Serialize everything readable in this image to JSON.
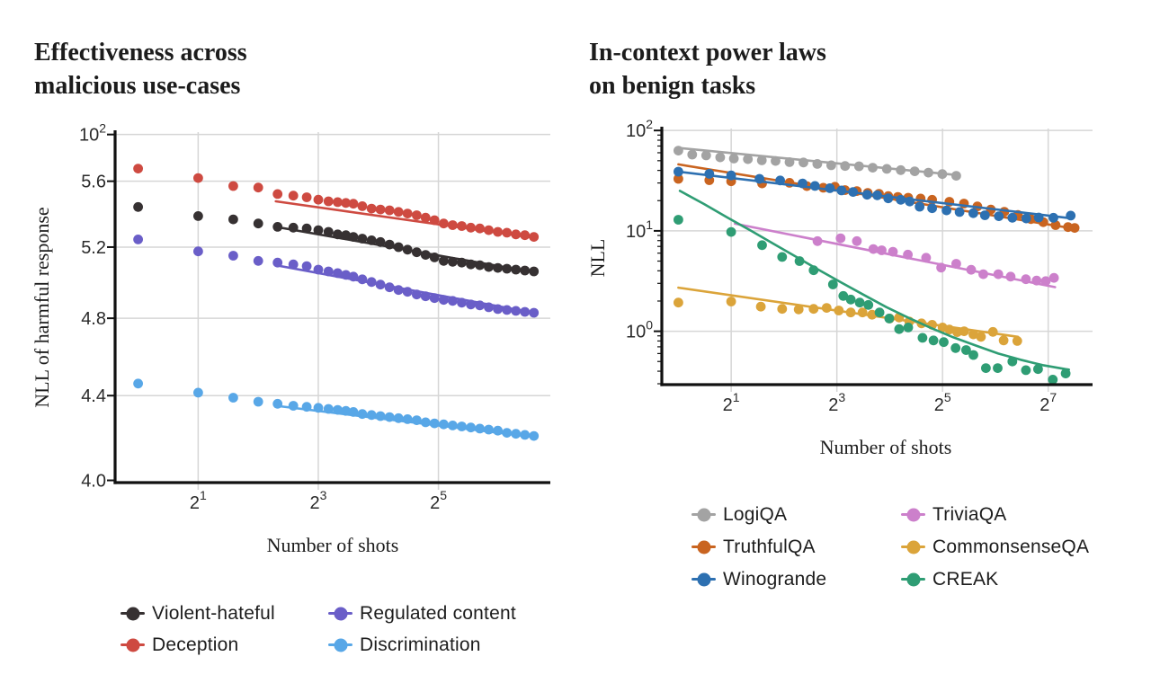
{
  "chart_data": [
    {
      "type": "scatter",
      "title_lines": [
        "Effectiveness across",
        "malicious use-cases"
      ],
      "xlabel": "Number of shots",
      "ylabel": "NLL of harmful response",
      "x_scale": "log2",
      "y_scale": "log10",
      "x_domain": [
        0.767,
        116.4
      ],
      "y_domain": [
        3.99,
        5.918
      ],
      "grid": true,
      "x_ticks": [
        {
          "base": "2",
          "sup": "1",
          "value": 2
        },
        {
          "base": "2",
          "sup": "3",
          "value": 8
        },
        {
          "base": "2",
          "sup": "5",
          "value": 32
        }
      ],
      "y_ticks": [
        {
          "text": "10",
          "sup": "2",
          "value": 5.902,
          "grid": true
        },
        {
          "text": "5.6",
          "value": 5.6,
          "grid": true
        },
        {
          "text": "5.2",
          "value": 5.2,
          "grid": true
        },
        {
          "text": "4.8",
          "value": 4.8,
          "grid": true
        },
        {
          "text": "4.4",
          "value": 4.4,
          "grid": true
        },
        {
          "text": "4.0",
          "value": 4.0,
          "grid": false
        }
      ],
      "y_minor_ticks": false,
      "shots_x": [
        1,
        2,
        3,
        4,
        5,
        6,
        7,
        8,
        9,
        10,
        11,
        12,
        13.3,
        14.8,
        16.4,
        18.2,
        20.2,
        22.4,
        24.9,
        27.6,
        30.6,
        34,
        37.7,
        41.9,
        46.5,
        51.6,
        57.2,
        63.5,
        70.5,
        78.2,
        86.8,
        96.3
      ],
      "series": [
        {
          "key": "violent-hateful",
          "name": "Violent-hateful",
          "color": "#363132",
          "y": [
            5.44,
            5.385,
            5.365,
            5.34,
            5.32,
            5.315,
            5.31,
            5.3,
            5.29,
            5.275,
            5.27,
            5.26,
            5.25,
            5.24,
            5.23,
            5.215,
            5.2,
            5.185,
            5.17,
            5.155,
            5.14,
            5.12,
            5.115,
            5.11,
            5.1,
            5.095,
            5.085,
            5.08,
            5.075,
            5.07,
            5.065,
            5.06
          ],
          "fit": {
            "x": [
              4.9,
              96
            ],
            "y": [
              5.32,
              5.055
            ]
          }
        },
        {
          "key": "deception",
          "name": "Deception",
          "color": "#ce4a41",
          "y": [
            5.68,
            5.62,
            5.57,
            5.56,
            5.52,
            5.51,
            5.5,
            5.485,
            5.475,
            5.47,
            5.465,
            5.46,
            5.445,
            5.43,
            5.425,
            5.42,
            5.41,
            5.4,
            5.39,
            5.375,
            5.36,
            5.34,
            5.33,
            5.325,
            5.315,
            5.31,
            5.3,
            5.29,
            5.285,
            5.275,
            5.27,
            5.26
          ],
          "fit": {
            "x": [
              4.9,
              96
            ],
            "y": [
              5.475,
              5.255
            ]
          }
        },
        {
          "key": "discrimination",
          "name": "Discrimination",
          "color": "#58a7e7",
          "y": [
            4.46,
            4.415,
            4.39,
            4.37,
            4.36,
            4.35,
            4.345,
            4.34,
            4.335,
            4.33,
            4.325,
            4.32,
            4.31,
            4.305,
            4.3,
            4.295,
            4.29,
            4.285,
            4.28,
            4.27,
            4.265,
            4.26,
            4.255,
            4.25,
            4.245,
            4.24,
            4.235,
            4.23,
            4.22,
            4.215,
            4.21,
            4.205
          ],
          "fit": {
            "x": [
              4.9,
              96
            ],
            "y": [
              4.35,
              4.2
            ]
          }
        },
        {
          "key": "regulated-content",
          "name": "Regulated content",
          "color": "#6a5ec8",
          "y": [
            5.245,
            5.175,
            5.15,
            5.12,
            5.11,
            5.1,
            5.09,
            5.07,
            5.06,
            5.05,
            5.04,
            5.03,
            5.015,
            5.0,
            4.985,
            4.97,
            4.955,
            4.945,
            4.93,
            4.92,
            4.91,
            4.9,
            4.895,
            4.885,
            4.875,
            4.87,
            4.86,
            4.85,
            4.845,
            4.84,
            4.835,
            4.83
          ],
          "fit": {
            "x": [
              4.9,
              96
            ],
            "y": [
              5.095,
              4.83
            ]
          }
        }
      ],
      "legend_columns": [
        [
          0,
          1
        ],
        [
          3,
          2
        ]
      ],
      "line_over_dots": true
    },
    {
      "type": "scatter",
      "title_lines": [
        "In-context power laws",
        "on benign tasks"
      ],
      "xlabel": "Number of shots",
      "ylabel": "NLL",
      "x_scale": "log2",
      "y_scale": "log10",
      "x_domain": [
        0.805,
        229
      ],
      "y_domain": [
        0.294,
        104.6
      ],
      "grid": true,
      "x_ticks": [
        {
          "base": "2",
          "sup": "1",
          "value": 2
        },
        {
          "base": "2",
          "sup": "3",
          "value": 8
        },
        {
          "base": "2",
          "sup": "5",
          "value": 32
        },
        {
          "base": "2",
          "sup": "7",
          "value": 128
        }
      ],
      "y_ticks": [
        {
          "text": "10",
          "sup": "2",
          "value": 100,
          "grid": true
        },
        {
          "text": "10",
          "sup": "1",
          "value": 10,
          "grid": true
        },
        {
          "text": "10",
          "sup": "0",
          "value": 1,
          "grid": true
        }
      ],
      "y_minor_ticks": true,
      "series": [
        {
          "key": "logiqa",
          "name": "LogiQA",
          "color": "#a3a3a3",
          "points": {
            "x": [
              1,
              1.2,
              1.44,
              1.73,
              2.07,
              2.49,
              2.99,
              3.58,
              4.3,
              5.16,
              6.19,
              7.43,
              8.91,
              10.7,
              12.8,
              15.4,
              18.5,
              22.2,
              26.6,
              31.9,
              38.3
            ],
            "y": [
              63,
              57.5,
              56.5,
              54,
              52.5,
              51.8,
              50.4,
              49.7,
              48.4,
              48,
              46.4,
              45,
              44.3,
              44,
              42.6,
              41.5,
              40.3,
              39.2,
              38,
              36.8,
              35.4
            ]
          },
          "fit": {
            "x": [
              1,
              38.3
            ],
            "y": [
              67,
              36
            ]
          }
        },
        {
          "key": "truthfulqa",
          "name": "TruthfulQA",
          "color": "#c96420",
          "points": {
            "x": [
              1,
              1.5,
              2,
              3,
              4.3,
              5.4,
              6.7,
              7.8,
              8.9,
              10.4,
              12,
              13.9,
              15.7,
              17.8,
              20.4,
              24,
              27.9,
              35,
              42.4,
              50.5,
              60.3,
              72,
              86,
              102,
              120,
              141,
              166,
              181
            ],
            "y": [
              33,
              32,
              31.2,
              29.7,
              30.1,
              27.9,
              26.9,
              27.5,
              25.5,
              24.9,
              23.9,
              23.4,
              22.2,
              21.8,
              21.4,
              21,
              20.4,
              19.5,
              18.7,
              17.5,
              16.3,
              15.5,
              14.4,
              13.1,
              12.2,
              11.4,
              10.9,
              10.7
            ]
          },
          "fit": {
            "x": [
              1,
              181
            ],
            "y": [
              46,
              10.5
            ]
          }
        },
        {
          "key": "winogrande",
          "name": "Winogrande",
          "color": "#2d70b1",
          "points": {
            "x": [
              1,
              1.5,
              2,
              2.9,
              3.8,
              5.1,
              6,
              7.3,
              8.5,
              9.9,
              11.9,
              13.6,
              15.7,
              18.5,
              20.8,
              23.7,
              27.9,
              33.7,
              40,
              47.9,
              55.8,
              67,
              80,
              96,
              113,
              137,
              172
            ],
            "y": [
              38.9,
              37,
              35.7,
              33,
              31.8,
              29.7,
              28,
              26.6,
              25.3,
              24.4,
              22.9,
              22.6,
              21.1,
              20.4,
              19.6,
              17.4,
              16.8,
              16,
              15.4,
              15,
              14.3,
              14,
              13.5,
              13.3,
              13.6,
              13.5,
              14.2
            ]
          },
          "fit": {
            "x": [
              1,
              175
            ],
            "y": [
              38.9,
              13.3
            ]
          }
        },
        {
          "key": "triviaqa",
          "name": "TriviaQA",
          "color": "#cc80cb",
          "points": {
            "x": [
              6.2,
              8.4,
              10.4,
              12.9,
              14.4,
              16.7,
              20.3,
              25.8,
              31.4,
              38.3,
              46.6,
              54.6,
              66.5,
              78.2,
              95.5,
              110,
              124,
              138
            ],
            "y": [
              7.9,
              8.45,
              7.9,
              6.6,
              6.4,
              6.2,
              5.8,
              5.4,
              4.3,
              4.7,
              4.1,
              3.7,
              3.7,
              3.5,
              3.3,
              3.2,
              3.16,
              3.4
            ]
          },
          "fit": {
            "x": [
              2.1,
              140
            ],
            "y": [
              11.8,
              2.75
            ]
          }
        },
        {
          "key": "commonsenseqa",
          "name": "CommonsenseQA",
          "color": "#dba43a",
          "points": {
            "x": [
              1,
              2,
              2.95,
              3.9,
              4.85,
              5.9,
              7,
              8.2,
              9.6,
              11.2,
              12.7,
              16,
              18.1,
              20.7,
              24.3,
              27.9,
              32,
              35,
              38.8,
              42.5,
              48,
              53,
              62,
              71.3,
              85.3
            ],
            "y": [
              1.93,
              1.98,
              1.76,
              1.67,
              1.65,
              1.67,
              1.71,
              1.61,
              1.54,
              1.54,
              1.46,
              1.34,
              1.37,
              1.25,
              1.2,
              1.16,
              1.09,
              1.04,
              0.98,
              1.0,
              0.93,
              0.88,
              0.985,
              0.81,
              0.8
            ]
          },
          "fit": {
            "x": [
              1,
              86
            ],
            "y": [
              2.72,
              0.88
            ]
          }
        },
        {
          "key": "creak",
          "name": "CREAK",
          "color": "#2f9d74",
          "points": {
            "x": [
              1,
              2,
              3,
              3.9,
              4.9,
              5.9,
              7.6,
              8.7,
              9.6,
              10.8,
              12.1,
              14,
              15.9,
              18.1,
              20.4,
              24.6,
              28.4,
              32.5,
              38,
              43.6,
              48,
              56.5,
              66,
              80,
              95.5,
              112,
              136,
              161
            ],
            "y": [
              12.9,
              9.76,
              7.2,
              5.5,
              5.0,
              4.05,
              2.93,
              2.25,
              2.07,
              1.93,
              1.83,
              1.54,
              1.34,
              1.05,
              1.09,
              0.86,
              0.81,
              0.78,
              0.68,
              0.65,
              0.58,
              0.43,
              0.43,
              0.5,
              0.41,
              0.42,
              0.33,
              0.38
            ]
          },
          "fit": {
            "x": [
              1.02,
              1.4,
              1.9,
              2.6,
              3.5,
              4.7,
              6.3,
              8.5,
              11.4,
              15.3,
              20.5,
              27.5,
              36.9,
              49.5,
              66.4,
              89,
              119,
              160,
              168
            ],
            "y": [
              25,
              18.5,
              13.6,
              10,
              7.4,
              5.5,
              4.1,
              3.05,
              2.3,
              1.74,
              1.36,
              1.08,
              0.87,
              0.72,
              0.6,
              0.52,
              0.46,
              0.42,
              0.415
            ]
          }
        }
      ],
      "legend_columns": [
        [
          0,
          1,
          2
        ],
        [
          3,
          4,
          5
        ]
      ],
      "line_over_dots": false
    }
  ]
}
